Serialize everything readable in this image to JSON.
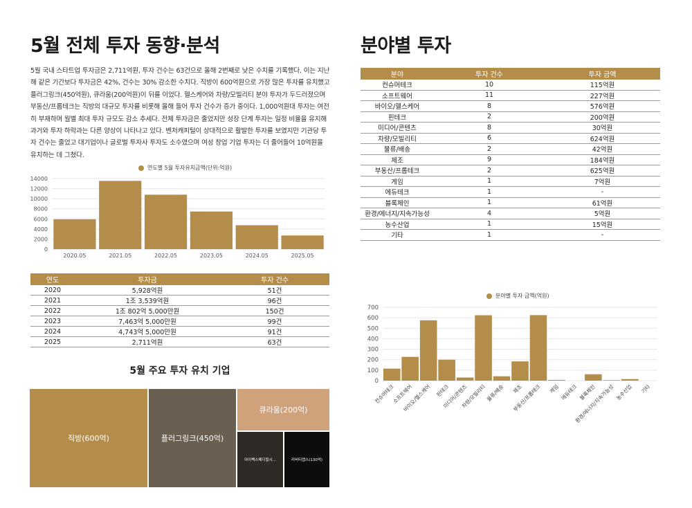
{
  "left_title": "5월 전체 투자 동향·분석",
  "right_title": "분야별 투자",
  "paragraph": "5월 국내 스타트업 투자금은 2,711억원, 투자 건수는 63건으로 올해 2번째로 낮은 수치를 기록했다. 이는 지난해 같은 기간보다 투자금은 42%, 건수는 30% 감소한 수치다. 직방이 600억원으로 가장 많은 투자를 유치했고 플러그링크(450억원), 큐라움(200억원)이 뒤를 이었다. 헬스케어와 차량/모빌리티 분야 투자가 두드러졌으며 부동산/프롭테크는 직방의 대규모 투자를 비롯해 올해 들어 투자 건수가 증가 중이다. 1,000억원대 투자는 여전히 부재하며 월별 최대 투자 규모도 감소 추세다. 전체 투자금은 줄었지만 성장 단계 투자는 일정 비율을 유지해 과거와 투자 하락과는 다른 양상이 나타나고 있다. 벤처캐피털이 상대적으로 활발한 투자를 보였지만 기관당 투자 건수는 줄었고 대기업이나 글로벌 투자사 투자도 소수였으며 여성 창업 기업 투자는 더 줄어들어 10억원을 유치하는 데 그쳤다.",
  "colors": {
    "accent": "#b58d4b",
    "dark_taupe": "#6b5f52",
    "tan": "#cfa27c",
    "dark": "#2e2b27",
    "black": "#0d0d0d"
  },
  "chart_yearly": {
    "type": "bar",
    "legend": "연도별 5월 투자유치금액(단위:억원)",
    "categories": [
      "2020.05",
      "2021.05",
      "2022.05",
      "2023.05",
      "2024.05",
      "2025.05"
    ],
    "values": [
      5928,
      13539,
      10802,
      7463,
      4743,
      2711
    ],
    "yticks": [
      "0",
      "2000",
      "4000",
      "6000",
      "8000",
      "10000",
      "12000",
      "14000"
    ],
    "ylim": [
      0,
      14000
    ]
  },
  "year_table": {
    "headers": [
      "연도",
      "투자금",
      "투자 건수"
    ],
    "rows": [
      [
        "2020",
        "5,928억원",
        "51건"
      ],
      [
        "2021",
        "1조 3,539억원",
        "96건"
      ],
      [
        "2022",
        "1조 802억 5,000만원",
        "150건"
      ],
      [
        "2023",
        "7,463억 5,000만원",
        "99건"
      ],
      [
        "2024",
        "4,743억 5,000만원",
        "91건"
      ],
      [
        "2025",
        "2,711억원",
        "63건"
      ]
    ]
  },
  "companies": {
    "title": "5월 주요 투자 유치 기업",
    "items": [
      "직방(600억)",
      "플러그링크(450억)",
      "큐라움(200억)",
      "아이벡스메디컬시...",
      "리버티랩스(130억)"
    ]
  },
  "sector_table": {
    "headers": [
      "분야",
      "투자 건수",
      "투자 금액"
    ],
    "rows": [
      [
        "컨슈머테크",
        "10",
        "115억원"
      ],
      [
        "소프트웨어",
        "11",
        "227억원"
      ],
      [
        "바이오/헬스케어",
        "8",
        "576억원"
      ],
      [
        "핀테크",
        "2",
        "200억원"
      ],
      [
        "미디어/콘텐츠",
        "8",
        "30억원"
      ],
      [
        "차량/모빌리티",
        "6",
        "624억원"
      ],
      [
        "물류/배송",
        "2",
        "42억원"
      ],
      [
        "제조",
        "9",
        "184억원"
      ],
      [
        "부동산/프롭테크",
        "2",
        "625억원"
      ],
      [
        "게임",
        "1",
        "7억원"
      ],
      [
        "에듀테크",
        "1",
        "-"
      ],
      [
        "블록체인",
        "1",
        "61억원"
      ],
      [
        "환경/에너지/지속가능성",
        "4",
        "5억원"
      ],
      [
        "농수산업",
        "1",
        "15억원"
      ],
      [
        "기타",
        "1",
        "-"
      ]
    ]
  },
  "chart_data": {
    "type": "bar",
    "legend": "분야별 투자 금액(억원)",
    "categories": [
      "컨슈머테크",
      "소프트웨어",
      "바이오/헬스케어",
      "핀테크",
      "미디어/콘텐츠",
      "차량/모빌리티",
      "물류/배송",
      "제조",
      "부동산/프롭테크",
      "게임",
      "에듀테크",
      "블록체인",
      "환경/에너지/지속가능성",
      "농수산업",
      "기타"
    ],
    "values": [
      115,
      227,
      576,
      200,
      30,
      624,
      42,
      184,
      625,
      7,
      0,
      61,
      5,
      15,
      0
    ],
    "yticks": [
      "0",
      "100",
      "200",
      "300",
      "400",
      "500",
      "600",
      "700"
    ],
    "ylim": [
      0,
      700
    ]
  }
}
